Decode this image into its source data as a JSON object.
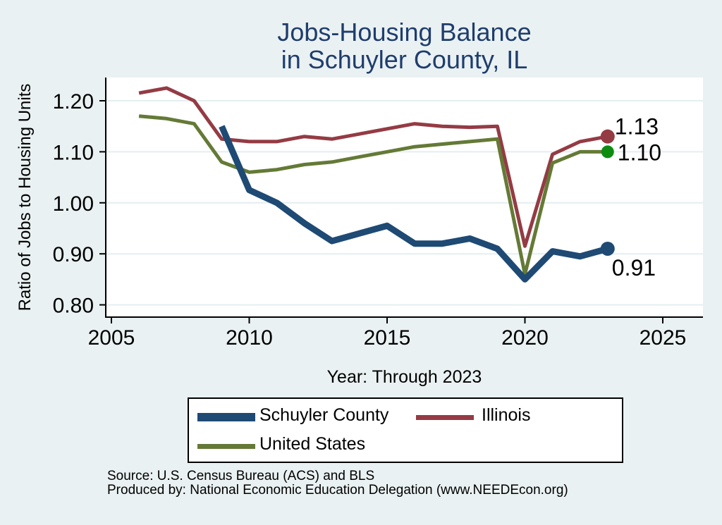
{
  "title": {
    "line1": "Jobs-Housing Balance",
    "line2": "in Schuyler County, IL"
  },
  "axes": {
    "y_title": "Ratio of Jobs to Housing Units",
    "x_title": "Year: Through 2023"
  },
  "chart_data": {
    "type": "line",
    "title": "Jobs-Housing Balance in Schuyler County, IL",
    "xlabel": "Year: Through 2023",
    "ylabel": "Ratio of Jobs to Housing Units",
    "x_ticks": [
      2005,
      2010,
      2015,
      2020,
      2025
    ],
    "x_tick_labels": [
      "2005",
      "2010",
      "2015",
      "2020",
      "2025"
    ],
    "y_tick_values": [
      1.2,
      1.1,
      1.0,
      0.9,
      0.8
    ],
    "y_tick_labels": [
      "1.20",
      "1.10",
      "1.00",
      "0.90",
      "0.80"
    ],
    "xlim": [
      2004.8,
      2026.7
    ],
    "ylim": [
      0.776,
      1.253
    ],
    "grid": true,
    "legend_position": "bottom",
    "series": [
      {
        "name": "Schuyler County",
        "color": "#1e4a74",
        "marker_color": "#1e4a74",
        "end_label": "0.91",
        "x": [
          2009,
          2010,
          2011,
          2012,
          2013,
          2014,
          2015,
          2016,
          2017,
          2018,
          2019,
          2020,
          2021,
          2022,
          2023
        ],
        "values": [
          1.15,
          1.025,
          1.0,
          0.96,
          0.925,
          0.94,
          0.955,
          0.92,
          0.92,
          0.93,
          0.91,
          0.85,
          0.905,
          0.895,
          0.91
        ]
      },
      {
        "name": "Illinois",
        "color": "#943b44",
        "marker_color": "#943b44",
        "end_label": "1.13",
        "x": [
          2006,
          2007,
          2008,
          2009,
          2010,
          2011,
          2012,
          2013,
          2014,
          2015,
          2016,
          2017,
          2018,
          2019,
          2020,
          2021,
          2022,
          2023
        ],
        "values": [
          1.215,
          1.225,
          1.2,
          1.125,
          1.12,
          1.12,
          1.13,
          1.125,
          1.135,
          1.145,
          1.155,
          1.15,
          1.148,
          1.15,
          0.915,
          1.095,
          1.12,
          1.13
        ]
      },
      {
        "name": "United States",
        "color": "#647a36",
        "marker_color": "#0e8c10",
        "end_label": "1.10",
        "x": [
          2006,
          2007,
          2008,
          2009,
          2010,
          2011,
          2012,
          2013,
          2014,
          2015,
          2016,
          2017,
          2018,
          2019,
          2020,
          2021,
          2022,
          2023
        ],
        "values": [
          1.17,
          1.165,
          1.155,
          1.08,
          1.06,
          1.065,
          1.075,
          1.08,
          1.09,
          1.1,
          1.11,
          1.115,
          1.12,
          1.125,
          0.86,
          1.078,
          1.1,
          1.1
        ]
      }
    ]
  },
  "legend": {
    "items": [
      {
        "label": "Schuyler County"
      },
      {
        "label": "Illinois"
      },
      {
        "label": "United States"
      }
    ]
  },
  "footer": {
    "source": "Source: U.S. Census Bureau (ACS) and BLS",
    "produced_by": "Produced by: National Economic Education Delegation (www.NEEDEcon.org)"
  },
  "colors": {
    "background": "#eaf1f2",
    "plot_background": "#ffffff",
    "gridline": "#e4eef1",
    "axis": "#000000",
    "title": "#1f3d6d",
    "text": "#000000"
  }
}
